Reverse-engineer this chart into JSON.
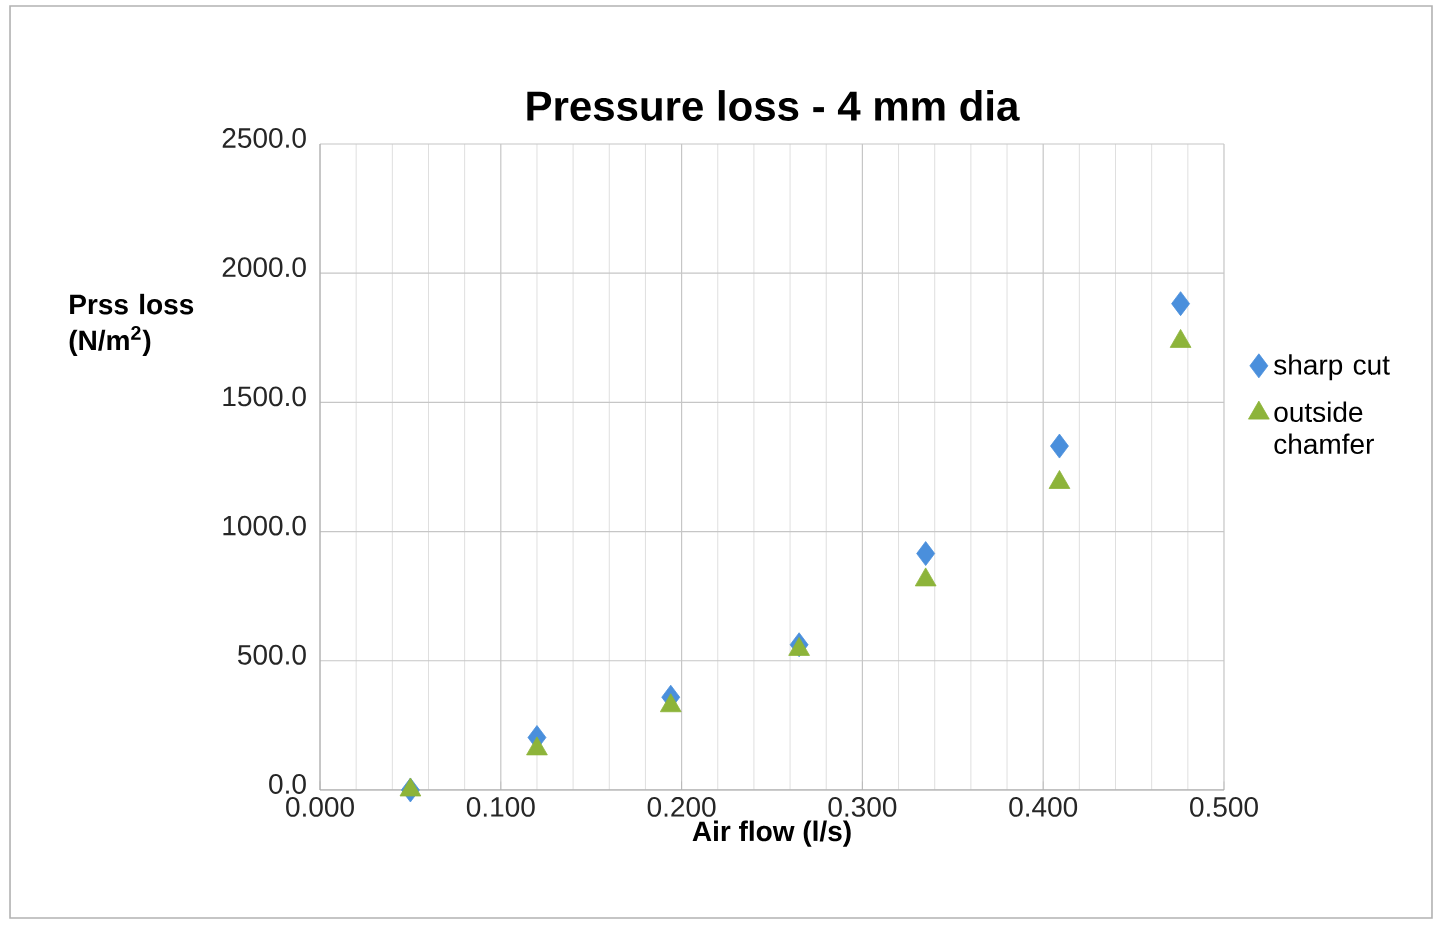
{
  "chart_data": {
    "type": "scatter",
    "title": "Pressure loss - 4 mm dia",
    "xlabel": "Air flow (l/s)",
    "ylabel": "Prss loss (N/m$^{2}$)",
    "x": [
      0.05,
      0.12,
      0.194,
      0.265,
      0.335,
      0.409,
      0.476
    ],
    "series": [
      {
        "name": "sharp cut",
        "color": "#4a8fdc",
        "marker": "diamond",
        "values": [
          0,
          203,
          359,
          562,
          915,
          1331,
          1882
        ]
      },
      {
        "name": "outside chamfer",
        "color": "#8db43a",
        "marker": "triangle",
        "values": [
          0,
          159,
          326,
          544,
          813,
          1190,
          1736
        ]
      }
    ],
    "xlim": [
      0,
      0.5
    ],
    "ylim": [
      0,
      2500
    ],
    "xticks": [
      {
        "value": 0,
        "label": "0.000"
      },
      {
        "value": 0.1,
        "label": "0.100"
      },
      {
        "value": 0.2,
        "label": "0.200"
      },
      {
        "value": 0.3,
        "label": "0.300"
      },
      {
        "value": 0.4,
        "label": "0.400"
      },
      {
        "value": 0.5,
        "label": "0.500"
      }
    ],
    "yticks": [
      {
        "value": 0,
        "label": "0.0"
      },
      {
        "value": 500,
        "label": "500.0"
      },
      {
        "value": 1000,
        "label": "1000.0"
      },
      {
        "value": 1500,
        "label": "1500.0"
      },
      {
        "value": 2000,
        "label": "2000.0"
      },
      {
        "value": 2500,
        "label": "2500.0"
      }
    ],
    "grid": true,
    "legend": "right"
  }
}
